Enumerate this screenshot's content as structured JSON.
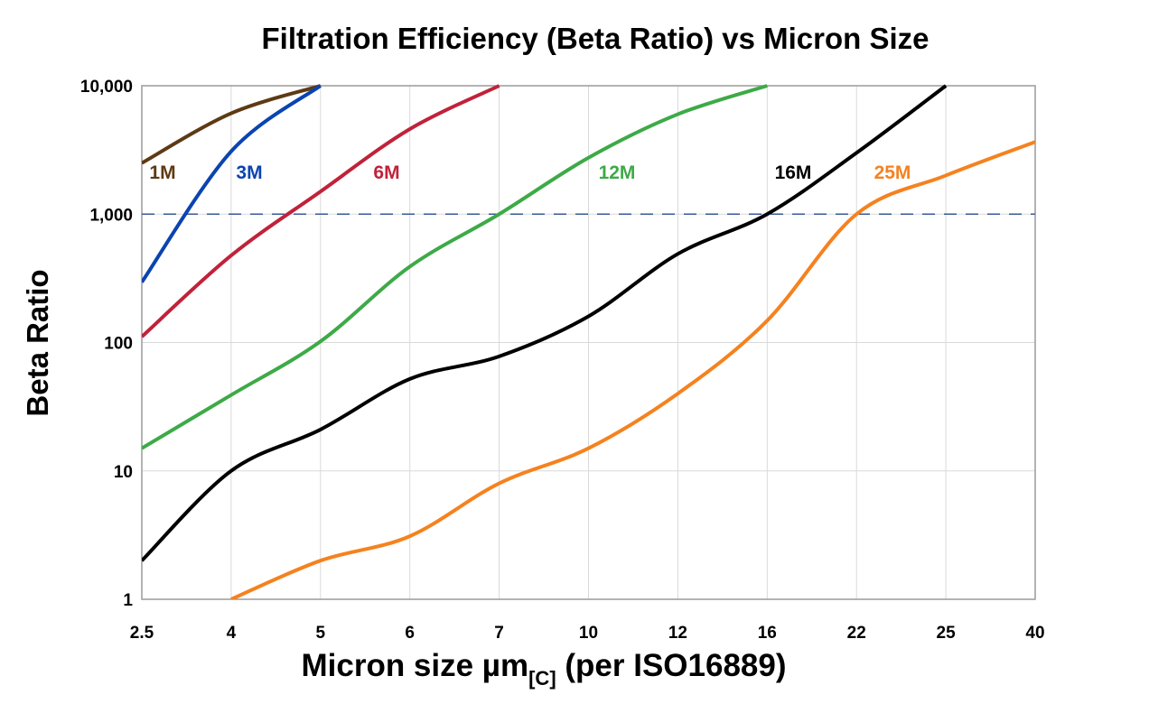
{
  "chart_data": {
    "type": "line",
    "title": "Filtration Efficiency (Beta Ratio) vs Micron Size",
    "xlabel": {
      "main": "Micron size µm",
      "sub": "[C]",
      "suffix": " (per ISO16889)"
    },
    "ylabel": "Beta Ratio",
    "yscale": "log",
    "ylim": [
      1,
      10000
    ],
    "yticks": [
      "1",
      "10",
      "100",
      "1,000",
      "10,000"
    ],
    "x": [
      "2.5",
      "4",
      "5",
      "6",
      "7",
      "10",
      "12",
      "16",
      "22",
      "25",
      "40"
    ],
    "grid": true,
    "reference_line": {
      "y": 1000,
      "style": "dashed",
      "color": "#3a5a96"
    },
    "series": [
      {
        "name": "1M",
        "color": "#5e3a14",
        "values": [
          2500,
          6100,
          10000,
          null,
          null,
          null,
          null,
          null,
          null,
          null,
          null
        ]
      },
      {
        "name": "3M",
        "color": "#0b44b0",
        "values": [
          295,
          3080,
          10000,
          null,
          null,
          null,
          null,
          null,
          null,
          null,
          null
        ]
      },
      {
        "name": "6M",
        "color": "#c0223a",
        "values": [
          111,
          476,
          1500,
          4600,
          10000,
          null,
          null,
          null,
          null,
          null,
          null
        ]
      },
      {
        "name": "12M",
        "color": "#3daa47",
        "values": [
          15,
          39,
          102,
          390,
          1000,
          2750,
          6000,
          10000,
          null,
          null,
          null
        ]
      },
      {
        "name": "16M",
        "color": "#000000",
        "values": [
          2,
          10,
          21,
          52,
          78,
          160,
          490,
          1000,
          3000,
          10000,
          null
        ]
      },
      {
        "name": "25M",
        "color": "#f5821f",
        "values": [
          null,
          1,
          2,
          3.1,
          8,
          15,
          40,
          148,
          1000,
          2000,
          3650
        ]
      }
    ]
  }
}
